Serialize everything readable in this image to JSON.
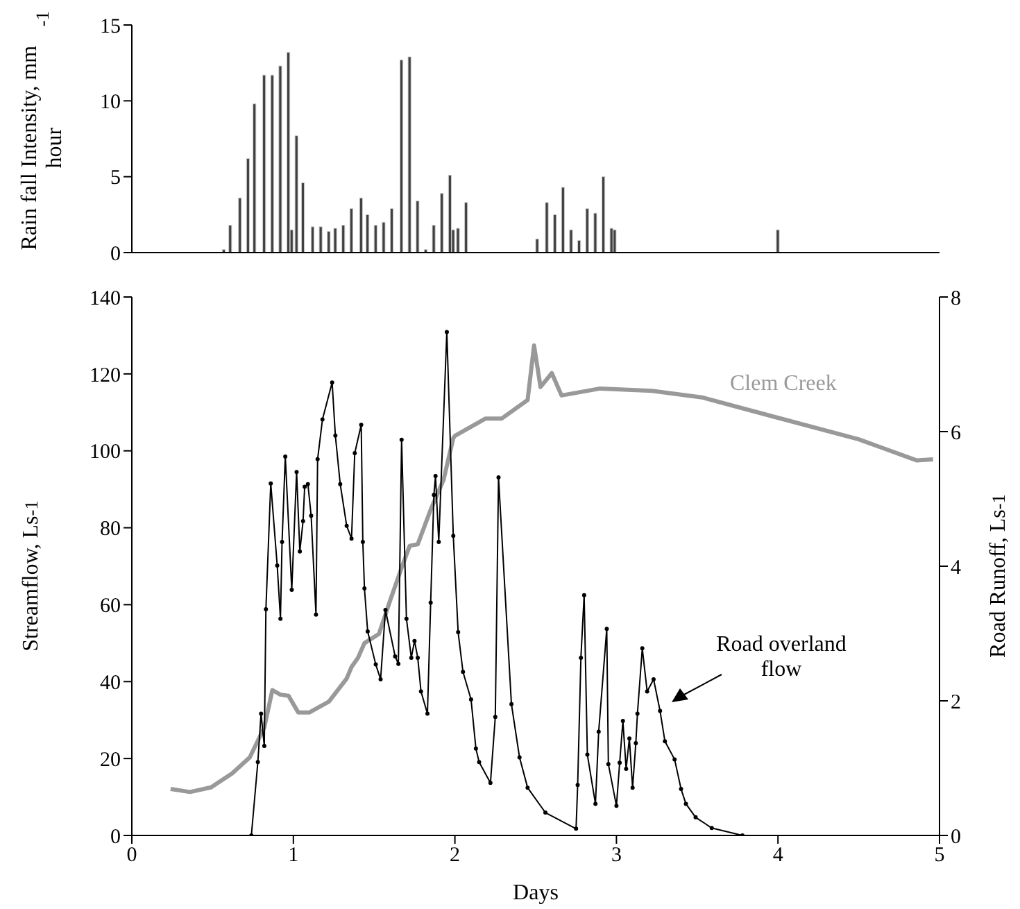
{
  "chart_data": [
    {
      "type": "bar",
      "ylabel": "Rain fall Intensity, mm hour$^{-1}$",
      "xlim": [
        0,
        5
      ],
      "ylim": [
        0,
        15
      ],
      "yticks": [
        0,
        5,
        10,
        15
      ],
      "tick_labels": "y",
      "color": "#404040",
      "x": [
        0.57,
        0.61,
        0.67,
        0.72,
        0.76,
        0.82,
        0.87,
        0.92,
        0.97,
        0.99,
        1.02,
        1.06,
        1.12,
        1.17,
        1.22,
        1.26,
        1.31,
        1.36,
        1.42,
        1.46,
        1.51,
        1.56,
        1.61,
        1.67,
        1.72,
        1.77,
        1.82,
        1.87,
        1.92,
        1.97,
        1.99,
        2.02,
        2.07,
        2.51,
        2.57,
        2.62,
        2.67,
        2.72,
        2.77,
        2.82,
        2.87,
        2.92,
        2.97,
        2.99,
        4.0
      ],
      "values": [
        0.2,
        1.8,
        3.6,
        6.2,
        9.8,
        11.7,
        11.7,
        12.3,
        13.2,
        1.5,
        7.7,
        4.6,
        1.7,
        1.7,
        1.4,
        1.6,
        1.8,
        2.9,
        3.6,
        2.5,
        1.8,
        2.0,
        2.9,
        12.7,
        12.9,
        3.4,
        0.2,
        1.8,
        3.9,
        5.1,
        1.5,
        1.6,
        3.3,
        0.9,
        3.3,
        2.5,
        4.3,
        1.5,
        0.8,
        2.9,
        2.6,
        5.0,
        1.6,
        1.5,
        1.5
      ]
    },
    {
      "type": "line",
      "xlabel": "Days",
      "ylabel": "Streamflow, Ls$^{-1}$",
      "y2label": "Road Runoff, Ls$^{-1}$",
      "xlim": [
        0,
        5
      ],
      "xticks": [
        0,
        1,
        2,
        3,
        4,
        5
      ],
      "ylim": [
        0,
        140
      ],
      "yticks": [
        0,
        20,
        40,
        60,
        80,
        100,
        120,
        140
      ],
      "y2lim": [
        0,
        8
      ],
      "y2ticks": [
        0,
        2,
        4,
        6,
        8
      ],
      "series": [
        {
          "name": "Clem Creek",
          "color": "#999999",
          "marker": "none",
          "x": [
            0.24,
            0.36,
            0.49,
            0.62,
            0.73,
            0.82,
            0.87,
            0.92,
            0.97,
            1.03,
            1.1,
            1.22,
            1.33,
            1.36,
            1.4,
            1.44,
            1.53,
            1.6,
            1.67,
            1.72,
            1.77,
            1.85,
            1.93,
            1.99,
            2.0,
            2.19,
            2.29,
            2.45,
            2.49,
            2.53,
            2.6,
            2.66,
            2.9,
            3.22,
            3.53,
            3.99,
            4.5,
            4.86,
            4.96
          ],
          "values": [
            12.1,
            11.3,
            12.5,
            16.1,
            20.3,
            28.1,
            37.8,
            36.6,
            36.3,
            32.0,
            32.0,
            34.8,
            40.8,
            43.8,
            46.2,
            50,
            52.4,
            61.2,
            69.6,
            75.3,
            75.7,
            84.7,
            92.5,
            103.3,
            103.9,
            108.4,
            108.4,
            113.2,
            127.4,
            116.6,
            120.2,
            114.4,
            116.2,
            115.6,
            113.9,
            108.7,
            103,
            97.5,
            97.8
          ]
        },
        {
          "name": "Road overland flow",
          "color": "#000000",
          "marker": "circle",
          "axis": "y2",
          "x": [
            0.74,
            0.78,
            0.8,
            0.82,
            0.83,
            0.86,
            0.9,
            0.92,
            0.93,
            0.95,
            0.99,
            1.02,
            1.04,
            1.06,
            1.07,
            1.09,
            1.11,
            1.14,
            1.15,
            1.18,
            1.24,
            1.26,
            1.29,
            1.33,
            1.36,
            1.38,
            1.42,
            1.43,
            1.44,
            1.46,
            1.51,
            1.54,
            1.57,
            1.63,
            1.65,
            1.67,
            1.7,
            1.73,
            1.75,
            1.77,
            1.79,
            1.83,
            1.85,
            1.87,
            1.88,
            1.9,
            1.95,
            1.99,
            2.02,
            2.05,
            2.1,
            2.13,
            2.15,
            2.22,
            2.25,
            2.27,
            2.35,
            2.4,
            2.45,
            2.56,
            2.75,
            2.76,
            2.78,
            2.8,
            2.82,
            2.87,
            2.89,
            2.94,
            2.95,
            3.0,
            3.02,
            3.04,
            3.06,
            3.08,
            3.1,
            3.12,
            3.13,
            3.16,
            3.19,
            3.23,
            3.27,
            3.3,
            3.36,
            3.4,
            3.43,
            3.49,
            3.59,
            3.78
          ],
          "values": [
            0,
            1.09,
            1.81,
            1.33,
            3.36,
            5.23,
            4.01,
            3.22,
            4.36,
            5.63,
            3.65,
            5.4,
            4.22,
            4.67,
            5.18,
            5.22,
            4.75,
            3.28,
            5.59,
            6.18,
            6.73,
            5.94,
            5.22,
            4.6,
            4.41,
            5.68,
            6.1,
            4.36,
            3.67,
            3.03,
            2.54,
            2.32,
            3.35,
            2.66,
            2.55,
            5.88,
            3.22,
            2.64,
            2.89,
            2.64,
            2.14,
            1.81,
            3.46,
            5.06,
            5.34,
            4.36,
            7.48,
            4.45,
            3.02,
            2.43,
            2.02,
            1.29,
            1.09,
            0.78,
            1.76,
            5.32,
            1.95,
            1.16,
            0.71,
            0.34,
            0.1,
            0.75,
            2.64,
            3.57,
            1.2,
            0.47,
            1.54,
            3.07,
            1.06,
            0.44,
            1.08,
            1.7,
            0.99,
            1.44,
            0.71,
            1.37,
            1.81,
            2.78,
            2.14,
            2.32,
            1.85,
            1.4,
            1.13,
            0.69,
            0.47,
            0.27,
            0.11,
            0
          ]
        }
      ]
    }
  ]
}
